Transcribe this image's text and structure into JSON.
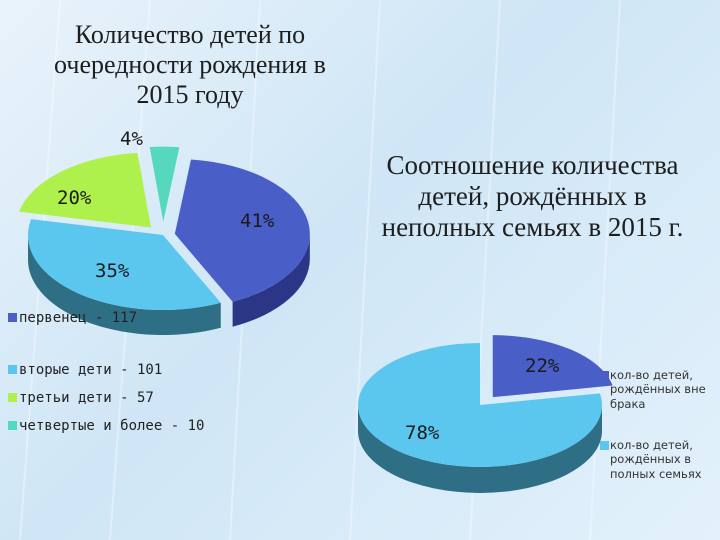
{
  "colors": {
    "blue": "#4a5ec8",
    "blueSide": "#2c3687",
    "sky": "#5bc7ee",
    "skySide": "#2f6f86",
    "green": "#aef04c",
    "greenSide": "#5a8a22",
    "teal": "#55d8bc",
    "tealSide": "#2a7f6e"
  },
  "chart_data": [
    {
      "type": "pie",
      "title": "Количество детей по очередности рождения в 2015 году",
      "categories": [
        "первенец - 117",
        "вторые дети - 101",
        "третьи дети - 57",
        "четвертые и более - 10"
      ],
      "values": [
        117,
        101,
        57,
        10
      ],
      "percent_labels": [
        "41%",
        "35%",
        "20%",
        "4%"
      ],
      "legend_position": "bottom-left"
    },
    {
      "type": "pie",
      "title": "Соотношение количества детей, рождённых в неполных семьях в 2015 г.",
      "categories": [
        "кол-во детей, рождённых вне брака",
        "кол-во детей, рождённых в полных семьях"
      ],
      "values": [
        22,
        78
      ],
      "percent_labels": [
        "22%",
        "78%"
      ],
      "legend_position": "right"
    }
  ]
}
